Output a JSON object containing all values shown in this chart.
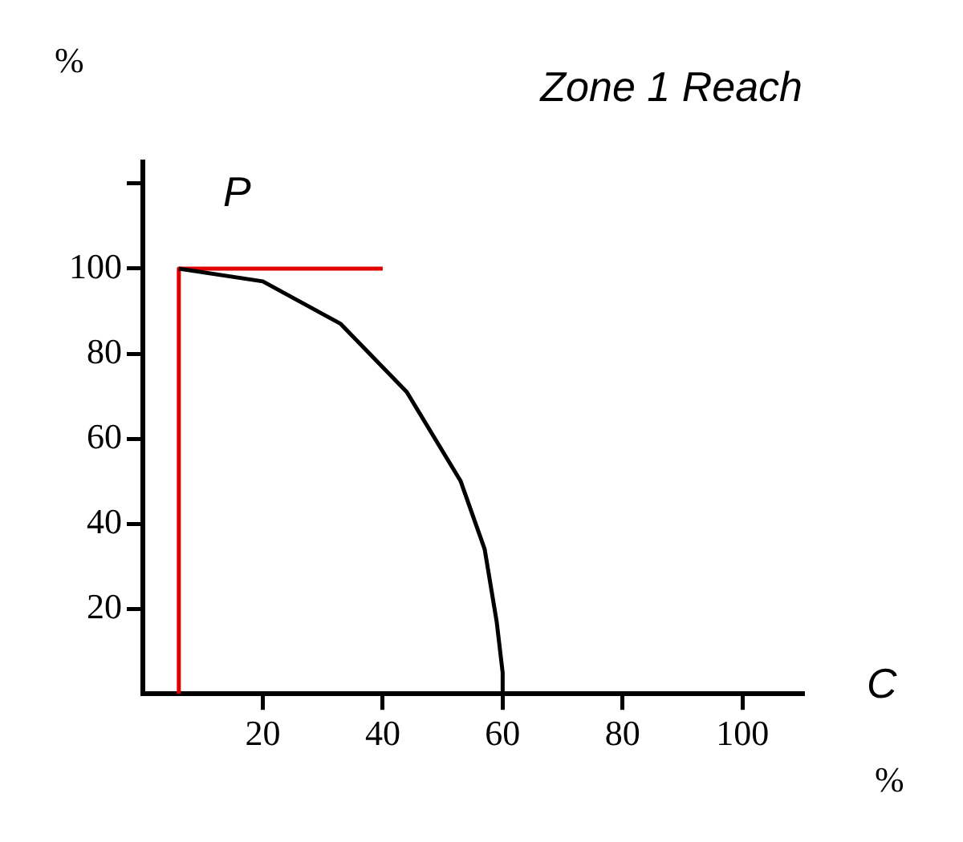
{
  "chart_data": {
    "type": "line",
    "title": "Zone 1 Reach",
    "xlabel": "%",
    "ylabel": "%",
    "annotations": [
      "P",
      "C"
    ],
    "xlim": [
      0,
      110
    ],
    "xticks": [
      20,
      40,
      60,
      80,
      100
    ],
    "ylim": [
      0,
      125
    ],
    "yticks": [
      20,
      40,
      60,
      80,
      100,
      {
        "value": 120,
        "label": null
      }
    ],
    "series": [
      {
        "color": "#000000",
        "x": [
          6,
          20,
          33,
          44,
          53,
          57,
          59,
          60,
          60
        ],
        "values": [
          100,
          97,
          87,
          71,
          50,
          34,
          17,
          5,
          0
        ]
      },
      {
        "color": "#e00000",
        "x": [
          6,
          6,
          40
        ],
        "values": [
          0,
          100,
          100
        ]
      }
    ],
    "grid": false,
    "legend": false,
    "marker": "none",
    "line_style": "solid"
  }
}
